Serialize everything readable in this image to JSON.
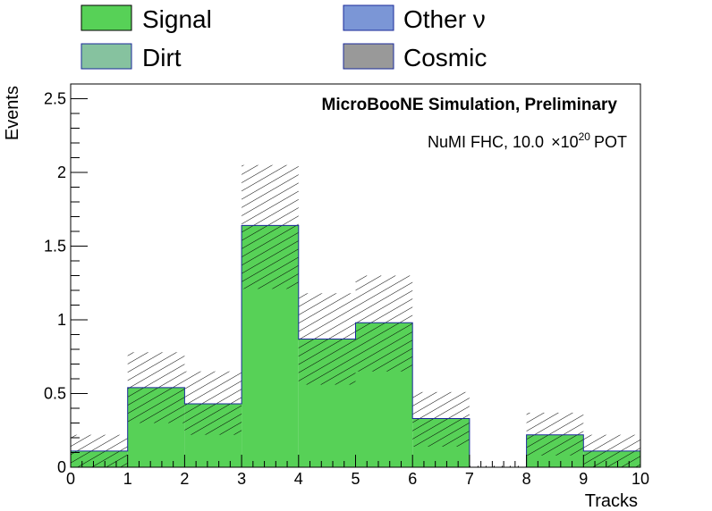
{
  "legend": {
    "entries": [
      {
        "label": "Signal",
        "color": "#57d157"
      },
      {
        "label": "Other ν",
        "color": "#7b96d6"
      },
      {
        "label": "Dirt",
        "color": "#86c29f"
      },
      {
        "label": "Cosmic",
        "color": "#999999"
      }
    ]
  },
  "annotations": {
    "simulation": "MicroBooNE Simulation, Preliminary",
    "exposure_prefix": "NuMI FHC, 10.0",
    "exposure_times": "×10",
    "exposure_exponent": "20",
    "exposure_suffix": "POT"
  },
  "chart_data": {
    "type": "bar",
    "histogram": true,
    "xlabel": "Tracks",
    "ylabel": "Events",
    "xlim": [
      0,
      10
    ],
    "ylim": [
      0,
      2.6
    ],
    "bin_edges": [
      0,
      1,
      2,
      3,
      4,
      5,
      6,
      7,
      8,
      9,
      10
    ],
    "x_ticks": [
      0,
      1,
      2,
      3,
      4,
      5,
      6,
      7,
      8,
      9,
      10
    ],
    "y_ticks": [
      0,
      0.5,
      1,
      1.5,
      2,
      2.5
    ],
    "x_tick_labels": [
      "0",
      "1",
      "2",
      "3",
      "4",
      "5",
      "6",
      "7",
      "8",
      "9",
      "10"
    ],
    "y_tick_labels": [
      "0",
      "0.5",
      "1",
      "1.5",
      "2",
      "2.5"
    ],
    "series": [
      {
        "name": "Signal",
        "color": "#57d157",
        "values": [
          0.11,
          0.54,
          0.43,
          1.64,
          0.87,
          0.98,
          0.33,
          0.0,
          0.22,
          0.11
        ]
      }
    ],
    "uncertainty": {
      "lower": [
        0.0,
        0.3,
        0.22,
        1.21,
        0.56,
        0.65,
        0.14,
        0.0,
        0.08,
        0.0
      ],
      "upper": [
        0.22,
        0.78,
        0.65,
        2.05,
        1.18,
        1.3,
        0.51,
        0.0,
        0.37,
        0.22
      ]
    },
    "grid": false,
    "legend_position": "top"
  }
}
